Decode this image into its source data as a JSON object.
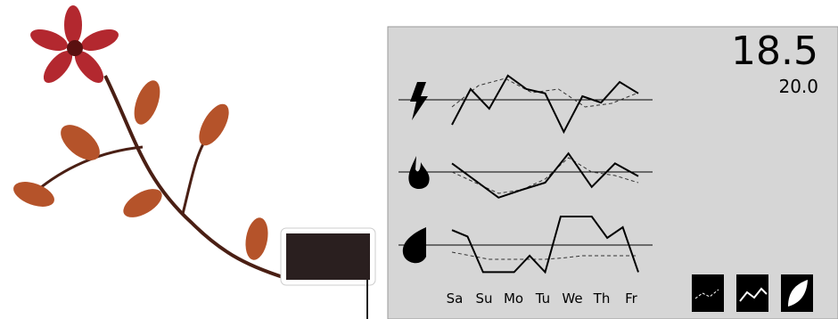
{
  "display": {
    "temperature": "18.5",
    "setpoint": "20.0",
    "days": [
      "Sa",
      "Su",
      "Mo",
      "Tu",
      "We",
      "Th",
      "Fr"
    ],
    "ylim": [
      0,
      10
    ],
    "baseline": 5,
    "rows": [
      {
        "actual": [
          1.5,
          6.5,
          3.75,
          8.4,
          6.5,
          5.9,
          0.5,
          5.5,
          4.6,
          7.5,
          5.9
        ],
        "average": [
          4,
          7,
          8,
          6,
          6.5,
          4,
          4.5,
          6
        ]
      },
      {
        "actual": [
          6.2,
          3.8,
          1.4,
          2.5,
          3.5,
          7.6,
          2.9,
          6.2,
          4.4
        ],
        "average": [
          5,
          3.5,
          2,
          2.5,
          4,
          7,
          5,
          4.5,
          3.5
        ]
      },
      {
        "actual": [
          7.1,
          6.2,
          1.2,
          1.2,
          1.2,
          3.5,
          1.2,
          9,
          9,
          9,
          6,
          7.5,
          1.2
        ],
        "average": [
          4,
          3.5,
          3,
          3,
          3,
          3,
          3.2,
          3.5,
          3.5,
          3.5,
          3.5
        ]
      }
    ]
  }
}
